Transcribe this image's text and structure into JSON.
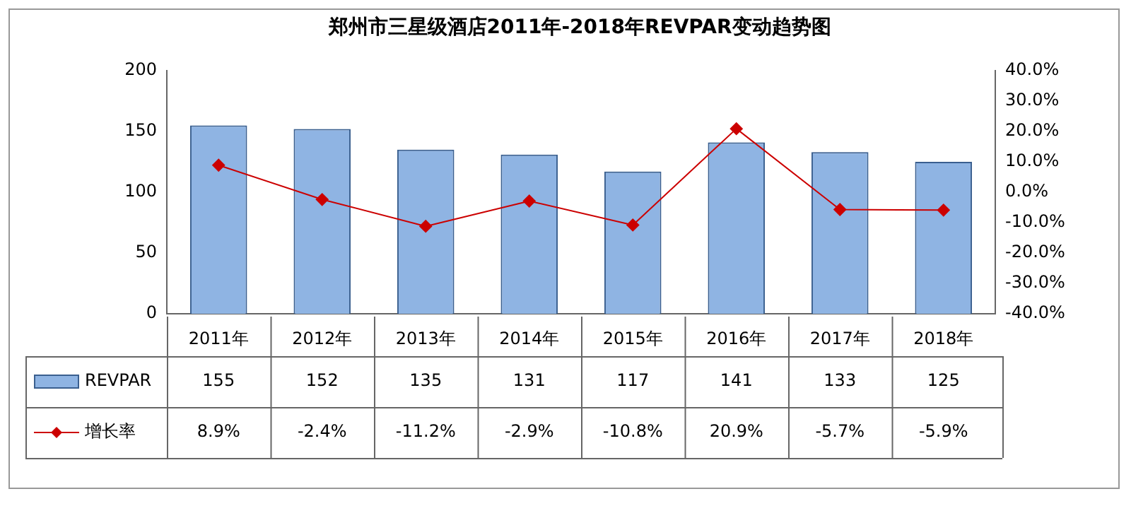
{
  "chart_data": {
    "type": "bar",
    "title": "郑州市三星级酒店2011年-2018年REVPAR变动趋势图",
    "categories": [
      "2011年",
      "2012年",
      "2013年",
      "2014年",
      "2015年",
      "2016年",
      "2017年",
      "2018年"
    ],
    "series": [
      {
        "name": "REVPAR",
        "color": "#8fb4e3",
        "values": [
          155,
          152,
          135,
          131,
          117,
          141,
          133,
          125
        ]
      },
      {
        "name": "增长率",
        "type": "line",
        "axis": "y2",
        "color": "#cc0000",
        "marker": "diamond",
        "line_style": "solid",
        "values": [
          8.9,
          -2.4,
          -11.2,
          -2.9,
          -10.8,
          20.9,
          -5.7,
          -5.9
        ],
        "value_labels": [
          "8.9%",
          "-2.4%",
          "-11.2%",
          "-2.9%",
          "-10.8%",
          "20.9%",
          "-5.7%",
          "-5.9%"
        ]
      }
    ],
    "data_labels": true,
    "ylim": [
      0,
      200
    ],
    "yticks": [
      0,
      50,
      100,
      150,
      200
    ],
    "y2lim": [
      -40,
      40
    ],
    "y2ticks": [
      {
        "value": -40,
        "label": "-40.0%"
      },
      {
        "value": -30,
        "label": "-30.0%"
      },
      {
        "value": -20,
        "label": "-20.0%"
      },
      {
        "value": -10,
        "label": "-10.0%"
      },
      {
        "value": 0,
        "label": "0.0%"
      },
      {
        "value": 10,
        "label": "10.0%"
      },
      {
        "value": 20,
        "label": "20.0%"
      },
      {
        "value": 30,
        "label": "30.0%"
      },
      {
        "value": 40,
        "label": "40.0%"
      }
    ],
    "grid": false,
    "legend": "bottom left"
  }
}
